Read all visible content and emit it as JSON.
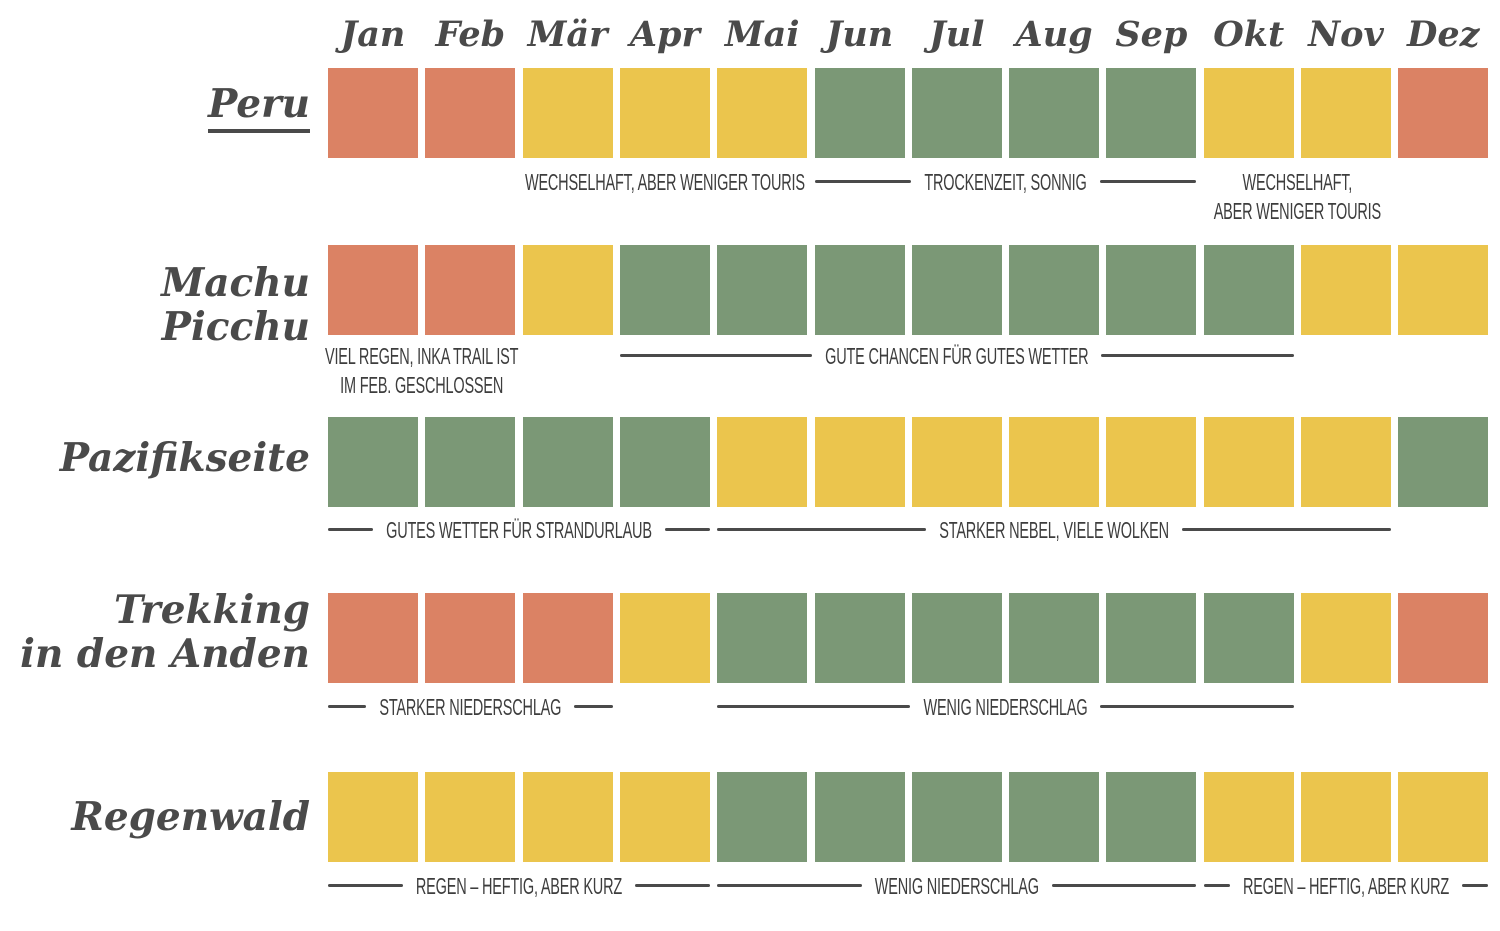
{
  "chart_data": {
    "type": "heatmap",
    "title": "",
    "months": [
      "Jan",
      "Feb",
      "Mär",
      "Apr",
      "Mai",
      "Jun",
      "Jul",
      "Aug",
      "Sep",
      "Okt",
      "Nov",
      "Dez"
    ],
    "legend": {
      "bad": "#DB8264",
      "medium": "#EBC54D",
      "good": "#7B9876"
    },
    "text_color": "#4A4A4A",
    "annotation_color": "#3D3D3D",
    "rows": [
      {
        "label": "Peru",
        "underline": true,
        "values": [
          "bad",
          "bad",
          "medium",
          "medium",
          "medium",
          "good",
          "good",
          "good",
          "good",
          "medium",
          "medium",
          "bad"
        ],
        "annotations": [
          {
            "text": "WECHSELHAFT, ABER WENIGER TOURIS",
            "span": [
              3,
              5
            ],
            "lines": "none"
          },
          {
            "text": "TROCKENZEIT, SONNIG",
            "span": [
              6,
              9
            ],
            "lines": "both"
          },
          {
            "text": "WECHSELHAFT,\nABER WENIGER TOURIS",
            "span": [
              10,
              11
            ],
            "lines": "none"
          }
        ]
      },
      {
        "label": "Machu Picchu",
        "underline": false,
        "values": [
          "bad",
          "bad",
          "medium",
          "good",
          "good",
          "good",
          "good",
          "good",
          "good",
          "good",
          "medium",
          "medium"
        ],
        "annotations": [
          {
            "text": "VIEL REGEN, INKA TRAIL IST\nIM FEB. GESCHLOSSEN",
            "span": [
              1,
              2
            ],
            "lines": "none"
          },
          {
            "text": "GUTE CHANCEN FÜR GUTES WETTER",
            "span": [
              4,
              10
            ],
            "lines": "both"
          }
        ]
      },
      {
        "label": "Pazifikseite",
        "underline": false,
        "values": [
          "good",
          "good",
          "good",
          "good",
          "medium",
          "medium",
          "medium",
          "medium",
          "medium",
          "medium",
          "medium",
          "good"
        ],
        "annotations": [
          {
            "text": "GUTES WETTER FÜR STRANDURLAUB",
            "span": [
              1,
              4
            ],
            "lines": "both"
          },
          {
            "text": "STARKER NEBEL, VIELE WOLKEN",
            "span": [
              5,
              11
            ],
            "lines": "both"
          }
        ]
      },
      {
        "label": "Trekking\nin den Anden",
        "underline": false,
        "values": [
          "bad",
          "bad",
          "bad",
          "medium",
          "good",
          "good",
          "good",
          "good",
          "good",
          "good",
          "medium",
          "bad"
        ],
        "annotations": [
          {
            "text": "STARKER NIEDERSCHLAG",
            "span": [
              1,
              3
            ],
            "lines": "both"
          },
          {
            "text": "WENIG NIEDERSCHLAG",
            "span": [
              5,
              10
            ],
            "lines": "both"
          }
        ]
      },
      {
        "label": "Regenwald",
        "underline": false,
        "values": [
          "medium",
          "medium",
          "medium",
          "medium",
          "good",
          "good",
          "good",
          "good",
          "good",
          "medium",
          "medium",
          "medium"
        ],
        "annotations": [
          {
            "text": "REGEN – HEFTIG, ABER KURZ",
            "span": [
              1,
              4
            ],
            "lines": "both"
          },
          {
            "text": "WENIG NIEDERSCHLAG",
            "span": [
              5,
              9
            ],
            "lines": "both"
          },
          {
            "text": "REGEN – HEFTIG, ABER KURZ",
            "span": [
              10,
              12
            ],
            "lines": "both"
          }
        ]
      }
    ]
  }
}
